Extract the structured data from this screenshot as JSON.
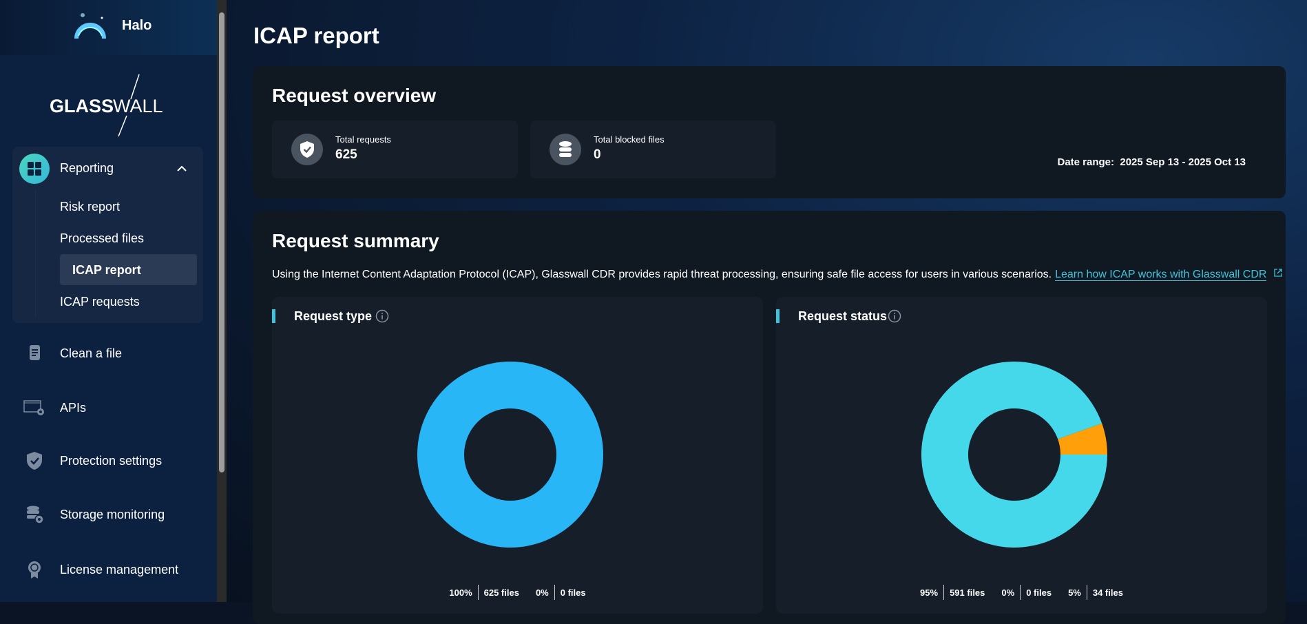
{
  "app": {
    "name": "Halo",
    "brand": "GLASSWALL"
  },
  "sidebar": {
    "group": {
      "label": "Reporting",
      "icon": "grid-icon",
      "items": [
        {
          "label": "Risk report",
          "active": false
        },
        {
          "label": "Processed files",
          "active": false
        },
        {
          "label": "ICAP report",
          "active": true
        },
        {
          "label": "ICAP requests",
          "active": false
        }
      ]
    },
    "items": [
      {
        "label": "Clean a file",
        "icon": "file-icon"
      },
      {
        "label": "APIs",
        "icon": "api-settings-icon"
      },
      {
        "label": "Protection settings",
        "icon": "shield-check-icon"
      },
      {
        "label": "Storage monitoring",
        "icon": "database-eye-icon"
      },
      {
        "label": "License management",
        "icon": "badge-icon"
      }
    ]
  },
  "page": {
    "title": "ICAP report"
  },
  "overview": {
    "title": "Request overview",
    "date_label": "Date range:",
    "date_value": "2025 Sep 13 - 2025 Oct 13",
    "stats": [
      {
        "label": "Total requests",
        "value": "625",
        "icon": "shield-check-icon"
      },
      {
        "label": "Total blocked files",
        "value": "0",
        "icon": "database-icon"
      }
    ]
  },
  "summary": {
    "title": "Request summary",
    "description": "Using the Internet Content Adaptation Protocol (ICAP), Glasswall CDR provides rapid threat processing, ensuring safe file access for users in various scenarios.",
    "link": "Learn how ICAP works with Glasswall CDR"
  },
  "colors": {
    "accent": "#3fc3dc",
    "blue": "#29b6f6",
    "teal": "#45d8ea",
    "orange": "#ff9f0a"
  },
  "chart_data": [
    {
      "type": "pie",
      "title": "Request type",
      "donut": true,
      "slices": [
        {
          "percent": "100%",
          "files": "625 files",
          "value": 625,
          "color": "#29b6f6"
        },
        {
          "percent": "0%",
          "files": "0 files",
          "value": 0,
          "color": "#ff9f0a"
        }
      ]
    },
    {
      "type": "pie",
      "title": "Request status",
      "donut": true,
      "slices": [
        {
          "percent": "95%",
          "files": "591 files",
          "value": 591,
          "color": "#45d8ea"
        },
        {
          "percent": "0%",
          "files": "0 files",
          "value": 0,
          "color": "#8a8a8a"
        },
        {
          "percent": "5%",
          "files": "34 files",
          "value": 34,
          "color": "#ff9f0a"
        }
      ]
    }
  ]
}
